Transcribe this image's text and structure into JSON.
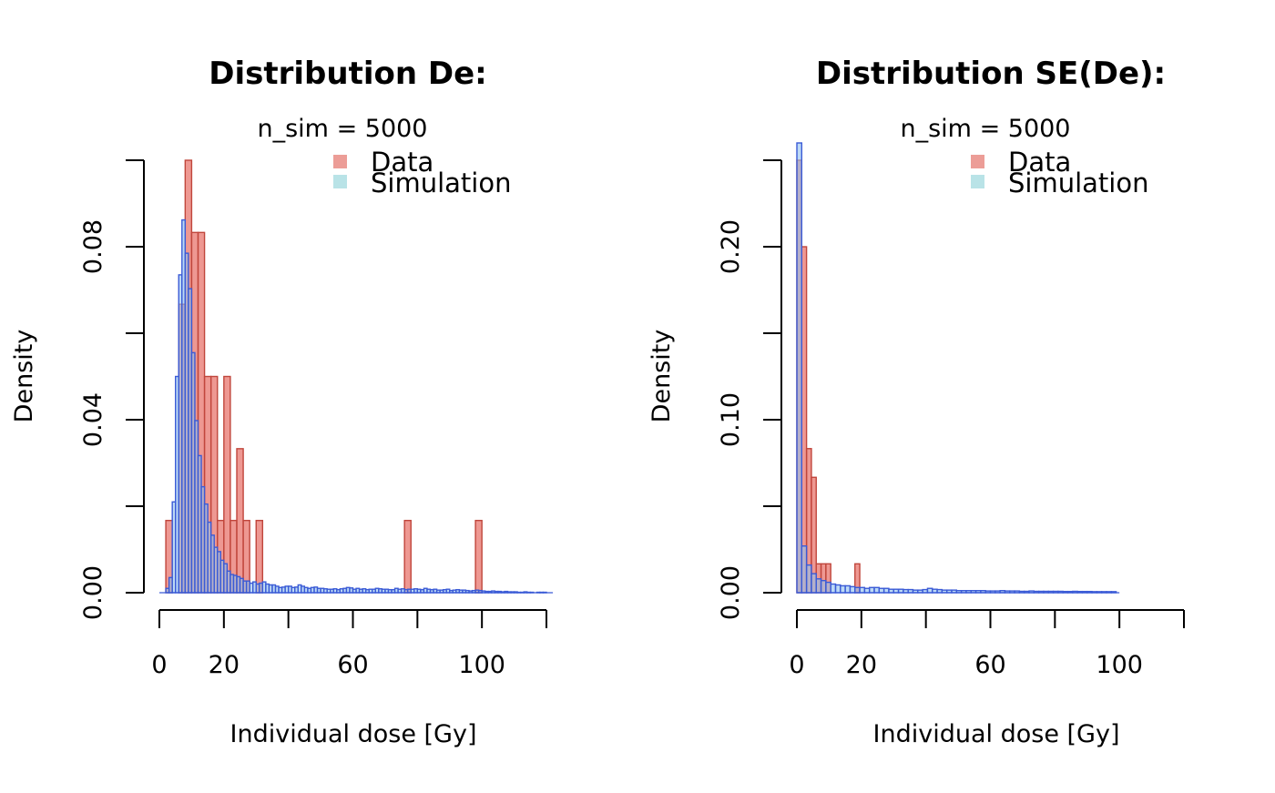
{
  "colors": {
    "data_fill": "#e8766d",
    "data_stroke": "#c0463c",
    "sim_fill": "#8fc0ee",
    "sim_stroke": "#3b5bd6",
    "legend_data": "#ec9d97",
    "legend_sim": "#b9e3e7",
    "axis": "#000000"
  },
  "chart_data": [
    {
      "type": "bar",
      "title": "Distribution De:",
      "subtitle": "n_sim = 5000",
      "xlabel": "Individual dose [Gy]",
      "ylabel": "Density",
      "xlim": [
        0,
        120
      ],
      "ylim": [
        0,
        0.1
      ],
      "x_ticks": [
        0,
        20,
        40,
        60,
        80,
        100,
        120
      ],
      "x_tick_labels": [
        "0",
        "20",
        "",
        "60",
        "",
        "100",
        ""
      ],
      "y_ticks": [
        0,
        0.02,
        0.04,
        0.06,
        0.08,
        0.1
      ],
      "y_tick_labels": [
        "0.00",
        "",
        "0.04",
        "",
        "0.08",
        ""
      ],
      "legend": {
        "position": "top-right",
        "entries": [
          "Data",
          "Simulation"
        ]
      },
      "series": [
        {
          "name": "Data",
          "bin_width": 2,
          "bins_start": [
            2,
            4,
            6,
            8,
            10,
            12,
            14,
            16,
            18,
            20,
            22,
            24,
            26,
            28,
            30,
            76,
            98
          ],
          "values": [
            0.0167,
            0,
            0.0667,
            0.1,
            0.0833,
            0.0833,
            0.05,
            0.05,
            0.0167,
            0.05,
            0.0167,
            0.0333,
            0.0167,
            0,
            0.0167,
            0.0167,
            0.0167
          ]
        },
        {
          "name": "Simulation",
          "bin_width": 1,
          "bins_start": [
            0,
            1,
            2,
            3,
            4,
            5,
            6,
            7,
            8,
            9,
            10,
            11,
            12,
            13,
            14,
            15,
            16,
            17,
            18,
            19,
            20,
            21,
            22,
            23,
            24,
            25,
            26,
            27,
            28,
            29,
            30,
            31,
            32,
            33,
            34,
            35,
            36,
            37,
            38,
            39,
            40,
            41,
            42,
            43,
            44,
            45,
            46,
            47,
            48,
            49,
            50,
            51,
            52,
            53,
            54,
            55,
            56,
            57,
            58,
            59,
            60,
            61,
            62,
            63,
            64,
            65,
            66,
            67,
            68,
            69,
            70,
            71,
            72,
            73,
            74,
            75,
            76,
            77,
            78,
            79,
            80,
            81,
            82,
            83,
            84,
            85,
            86,
            87,
            88,
            89,
            90,
            91,
            92,
            93,
            94,
            95,
            96,
            97,
            98,
            99,
            100,
            101,
            102,
            103,
            104,
            105,
            106,
            107,
            108,
            109,
            110,
            111,
            112,
            113,
            114,
            115,
            116,
            117,
            118,
            119,
            120
          ],
          "values": [
            0,
            0,
            0.001,
            0.0035,
            0.021,
            0.05,
            0.0735,
            0.0862,
            0.0785,
            0.0703,
            0.0555,
            0.0398,
            0.0317,
            0.0245,
            0.0205,
            0.0163,
            0.0133,
            0.0105,
            0.0095,
            0.0075,
            0.0067,
            0.005,
            0.0042,
            0.004,
            0.0037,
            0.0033,
            0.0027,
            0.0027,
            0.0022,
            0.0025,
            0.002,
            0.0022,
            0.0025,
            0.002,
            0.0018,
            0.0018,
            0.0015,
            0.0012,
            0.0013,
            0.0015,
            0.0015,
            0.0012,
            0.0013,
            0.0018,
            0.0015,
            0.0012,
            0.001,
            0.0012,
            0.0013,
            0.001,
            0.001,
            0.0009,
            0.0008,
            0.0008,
            0.0009,
            0.0007,
            0.0009,
            0.001,
            0.0012,
            0.0011,
            0.0008,
            0.001,
            0.0008,
            0.0009,
            0.0007,
            0.0008,
            0.0008,
            0.001,
            0.0009,
            0.0008,
            0.0008,
            0.0007,
            0.0007,
            0.001,
            0.0008,
            0.0009,
            0.0007,
            0.0008,
            0.0008,
            0.0009,
            0.0008,
            0.0007,
            0.001,
            0.0008,
            0.0007,
            0.0008,
            0.0006,
            0.0006,
            0.0007,
            0.0008,
            0.0005,
            0.0006,
            0.0007,
            0.0006,
            0.0006,
            0.0005,
            0.0004,
            0.0005,
            0.0006,
            0.0005,
            0.0004,
            0.0003,
            0.0003,
            0.0004,
            0.0003,
            0.0003,
            0.0002,
            0.0003,
            0.0002,
            0.0002,
            0.0002,
            0.0001,
            0.0001,
            0.0002,
            0.0001,
            0.0001,
            0,
            0.0001,
            0.0001,
            0.0001
          ]
        }
      ]
    },
    {
      "type": "bar",
      "title": "Distribution SE(De):",
      "subtitle": "n_sim = 5000",
      "xlabel": "Individual dose [Gy]",
      "ylabel": "Density",
      "xlim": [
        0,
        120
      ],
      "ylim": [
        0,
        0.25
      ],
      "x_ticks": [
        0,
        20,
        40,
        60,
        80,
        100,
        120
      ],
      "x_tick_labels": [
        "0",
        "20",
        "",
        "60",
        "",
        "100",
        ""
      ],
      "y_ticks": [
        0,
        0.05,
        0.1,
        0.15,
        0.2,
        0.25
      ],
      "y_tick_labels": [
        "0.00",
        "",
        "0.10",
        "",
        "0.20",
        ""
      ],
      "legend": {
        "position": "top-right",
        "entries": [
          "Data",
          "Simulation"
        ]
      },
      "series": [
        {
          "name": "Data",
          "bin_width": 1.5,
          "bins_start": [
            0,
            1.5,
            3,
            4.5,
            6,
            7.5,
            9,
            10.5,
            12,
            13.5,
            15,
            16.5,
            18
          ],
          "values": [
            0.25,
            0.2,
            0.0833,
            0.0667,
            0.0167,
            0.0167,
            0.0167,
            0,
            0,
            0,
            0,
            0,
            0.0167
          ]
        },
        {
          "name": "Simulation",
          "bin_width": 1.5,
          "bins_start": [
            0,
            1.5,
            3,
            4.5,
            6,
            7.5,
            9,
            10.5,
            12,
            13.5,
            15,
            16.5,
            18,
            19.5,
            21,
            22.5,
            24,
            25.5,
            27,
            28.5,
            30,
            31.5,
            33,
            34.5,
            36,
            37.5,
            39,
            40.5,
            42,
            43.5,
            45,
            46.5,
            48,
            49.5,
            51,
            52.5,
            54,
            55.5,
            57,
            58.5,
            60,
            61.5,
            63,
            64.5,
            66,
            67.5,
            69,
            70.5,
            72,
            73.5,
            75,
            76.5,
            78,
            79.5,
            81,
            82.5,
            84,
            85.5,
            87,
            88.5,
            90,
            91.5,
            93,
            94.5,
            96,
            97.5
          ],
          "values": [
            0.26,
            0.027,
            0.016,
            0.011,
            0.008,
            0.007,
            0.006,
            0.005,
            0.0045,
            0.004,
            0.004,
            0.0035,
            0.003,
            0.003,
            0.0025,
            0.003,
            0.003,
            0.0025,
            0.0025,
            0.002,
            0.002,
            0.002,
            0.0018,
            0.0018,
            0.0015,
            0.0015,
            0.0018,
            0.0025,
            0.002,
            0.0018,
            0.0015,
            0.0015,
            0.0015,
            0.0012,
            0.0012,
            0.0012,
            0.0012,
            0.0012,
            0.0012,
            0.001,
            0.001,
            0.001,
            0.0012,
            0.001,
            0.001,
            0.001,
            0.0008,
            0.0008,
            0.001,
            0.0008,
            0.0008,
            0.0008,
            0.0008,
            0.0008,
            0.0008,
            0.0007,
            0.0007,
            0.0008,
            0.0007,
            0.0007,
            0.0007,
            0.0006,
            0.0006,
            0.0006,
            0.0006,
            0.0006
          ]
        }
      ]
    }
  ]
}
